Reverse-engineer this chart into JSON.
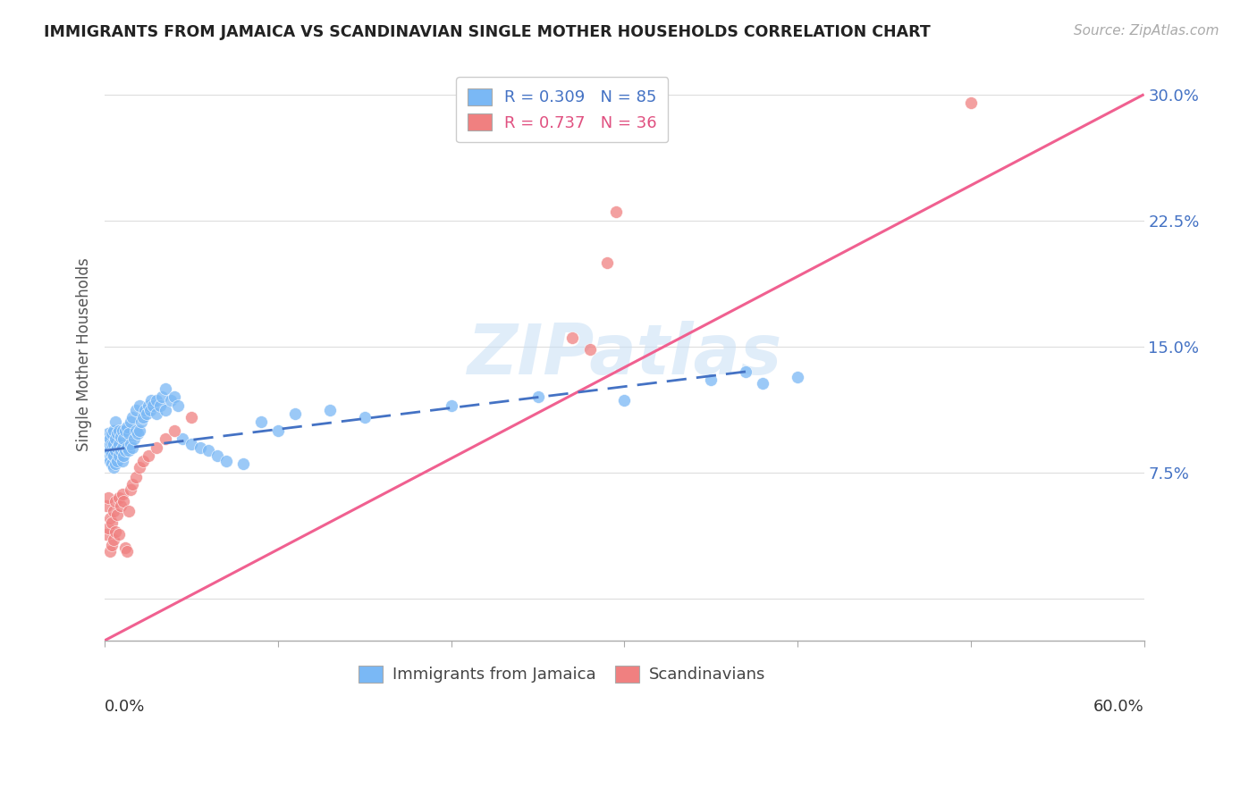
{
  "title": "IMMIGRANTS FROM JAMAICA VS SCANDINAVIAN SINGLE MOTHER HOUSEHOLDS CORRELATION CHART",
  "source": "Source: ZipAtlas.com",
  "ylabel": "Single Mother Households",
  "jamaica_color": "#7ab8f5",
  "scandinavian_color": "#f08080",
  "jamaica_line_color": "#4472c4",
  "scandinavian_line_color": "#f06090",
  "watermark": "ZIPatlas",
  "xlim": [
    0.0,
    0.6
  ],
  "ylim": [
    -0.025,
    0.315
  ],
  "ytick_vals": [
    0.0,
    0.075,
    0.15,
    0.225,
    0.3
  ],
  "ytick_labels": [
    "",
    "7.5%",
    "15.0%",
    "22.5%",
    "30.0%"
  ],
  "jam_line_x0": 0.0,
  "jam_line_y0": 0.088,
  "jam_line_x1": 0.37,
  "jam_line_y1": 0.135,
  "scan_line_x0": 0.0,
  "scan_line_y0": -0.025,
  "scan_line_x1": 0.6,
  "scan_line_y1": 0.3,
  "legend1_text": "R = 0.309",
  "legend1_n": "N = 85",
  "legend2_text": "R = 0.737",
  "legend2_n": "N = 36",
  "legend1_color": "#4472c4",
  "legend2_color": "#e05080",
  "jamaica_pts_x": [
    0.001,
    0.001,
    0.002,
    0.002,
    0.002,
    0.003,
    0.003,
    0.003,
    0.004,
    0.004,
    0.004,
    0.004,
    0.005,
    0.005,
    0.005,
    0.005,
    0.006,
    0.006,
    0.006,
    0.006,
    0.007,
    0.007,
    0.007,
    0.008,
    0.008,
    0.008,
    0.009,
    0.009,
    0.01,
    0.01,
    0.01,
    0.011,
    0.011,
    0.012,
    0.012,
    0.013,
    0.013,
    0.014,
    0.014,
    0.015,
    0.015,
    0.016,
    0.016,
    0.017,
    0.018,
    0.018,
    0.019,
    0.02,
    0.02,
    0.021,
    0.022,
    0.023,
    0.024,
    0.025,
    0.026,
    0.027,
    0.028,
    0.03,
    0.03,
    0.032,
    0.033,
    0.035,
    0.035,
    0.038,
    0.04,
    0.042,
    0.045,
    0.05,
    0.055,
    0.06,
    0.065,
    0.07,
    0.08,
    0.09,
    0.1,
    0.11,
    0.13,
    0.15,
    0.2,
    0.25,
    0.3,
    0.35,
    0.37,
    0.38,
    0.4
  ],
  "jamaica_pts_y": [
    0.09,
    0.095,
    0.085,
    0.092,
    0.098,
    0.082,
    0.088,
    0.095,
    0.08,
    0.086,
    0.092,
    0.098,
    0.078,
    0.085,
    0.092,
    0.1,
    0.08,
    0.088,
    0.095,
    0.105,
    0.082,
    0.09,
    0.098,
    0.085,
    0.092,
    0.1,
    0.088,
    0.096,
    0.082,
    0.09,
    0.1,
    0.085,
    0.095,
    0.088,
    0.1,
    0.09,
    0.102,
    0.088,
    0.098,
    0.092,
    0.105,
    0.09,
    0.108,
    0.095,
    0.1,
    0.112,
    0.098,
    0.1,
    0.115,
    0.105,
    0.108,
    0.112,
    0.11,
    0.115,
    0.112,
    0.118,
    0.115,
    0.11,
    0.118,
    0.115,
    0.12,
    0.112,
    0.125,
    0.118,
    0.12,
    0.115,
    0.095,
    0.092,
    0.09,
    0.088,
    0.085,
    0.082,
    0.08,
    0.105,
    0.1,
    0.11,
    0.112,
    0.108,
    0.115,
    0.12,
    0.118,
    0.13,
    0.135,
    0.128,
    0.132
  ],
  "scandinavian_pts_x": [
    0.001,
    0.001,
    0.002,
    0.002,
    0.003,
    0.003,
    0.004,
    0.004,
    0.005,
    0.005,
    0.006,
    0.006,
    0.007,
    0.008,
    0.008,
    0.009,
    0.01,
    0.011,
    0.012,
    0.013,
    0.014,
    0.015,
    0.016,
    0.018,
    0.02,
    0.022,
    0.025,
    0.03,
    0.035,
    0.04,
    0.05,
    0.29,
    0.295,
    0.5,
    0.27,
    0.28
  ],
  "scandinavian_pts_y": [
    0.038,
    0.055,
    0.042,
    0.06,
    0.048,
    0.028,
    0.045,
    0.032,
    0.052,
    0.035,
    0.058,
    0.04,
    0.05,
    0.06,
    0.038,
    0.055,
    0.062,
    0.058,
    0.03,
    0.028,
    0.052,
    0.065,
    0.068,
    0.072,
    0.078,
    0.082,
    0.085,
    0.09,
    0.095,
    0.1,
    0.108,
    0.2,
    0.23,
    0.295,
    0.155,
    0.148
  ]
}
